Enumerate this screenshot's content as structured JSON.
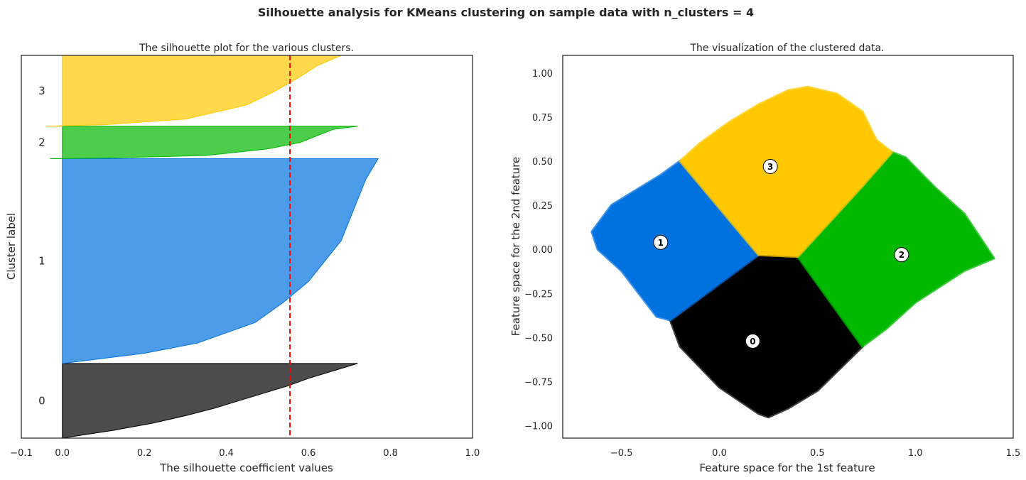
{
  "figure": {
    "title": "Silhouette analysis for KMeans clustering on sample data with n_clusters = 4"
  },
  "chart_data": [
    {
      "type": "area",
      "title": "The silhouette plot for the various clusters.",
      "xlabel": "The silhouette coefficient values",
      "ylabel": "Cluster label",
      "xlim": [
        -0.1,
        1.0
      ],
      "ylim": [
        0,
        100
      ],
      "xticks": [
        "−0.1",
        "0.0",
        "0.2",
        "0.4",
        "0.6",
        "0.8",
        "1.0"
      ],
      "xtick_values": [
        -0.1,
        0.0,
        0.2,
        0.4,
        0.6,
        0.8,
        1.0
      ],
      "yticks": [],
      "grid": false,
      "average_silhouette": 0.555,
      "clusters": [
        {
          "label": "0",
          "color": "#000000",
          "y_start": 0,
          "y_end": 19.5,
          "min": 0.0,
          "max": 0.72,
          "profile": [
            [
              0,
              0.0
            ],
            [
              0.1,
              0.12
            ],
            [
              0.2,
              0.22
            ],
            [
              0.3,
              0.3
            ],
            [
              0.4,
              0.37
            ],
            [
              0.5,
              0.43
            ],
            [
              0.6,
              0.49
            ],
            [
              0.7,
              0.55
            ],
            [
              0.8,
              0.6
            ],
            [
              0.9,
              0.66
            ],
            [
              1,
              0.72
            ]
          ]
        },
        {
          "label": "1",
          "color": "#0072e0",
          "y_start": 19.5,
          "y_end": 73,
          "min": 0.0,
          "max": 0.77,
          "profile": [
            [
              0,
              0.0
            ],
            [
              0.05,
              0.2
            ],
            [
              0.1,
              0.33
            ],
            [
              0.2,
              0.47
            ],
            [
              0.3,
              0.54
            ],
            [
              0.4,
              0.6
            ],
            [
              0.5,
              0.64
            ],
            [
              0.6,
              0.68
            ],
            [
              0.7,
              0.7
            ],
            [
              0.8,
              0.72
            ],
            [
              0.9,
              0.74
            ],
            [
              1,
              0.77
            ]
          ]
        },
        {
          "label": "2",
          "color": "#00b800",
          "y_start": 73,
          "y_end": 81.5,
          "min": -0.03,
          "max": 0.72,
          "profile": [
            [
              0,
              -0.03
            ],
            [
              0.02,
              0.1
            ],
            [
              0.1,
              0.35
            ],
            [
              0.3,
              0.5
            ],
            [
              0.5,
              0.58
            ],
            [
              0.7,
              0.62
            ],
            [
              0.9,
              0.66
            ],
            [
              1,
              0.72
            ]
          ]
        },
        {
          "label": "3",
          "color": "#ffc800",
          "y_start": 81.5,
          "y_end": 100,
          "min": -0.04,
          "max": 0.68,
          "profile": [
            [
              0,
              -0.04
            ],
            [
              0.02,
              0.1
            ],
            [
              0.1,
              0.3
            ],
            [
              0.3,
              0.45
            ],
            [
              0.5,
              0.52
            ],
            [
              0.7,
              0.58
            ],
            [
              0.85,
              0.62
            ],
            [
              1,
              0.68
            ]
          ]
        }
      ]
    },
    {
      "type": "scatter",
      "title": "The visualization of the clustered data.",
      "xlabel": "Feature space for the 1st feature",
      "ylabel": "Feature space for the 2nd feature",
      "xlim": [
        -0.8,
        1.5
      ],
      "ylim": [
        -1.07,
        1.1
      ],
      "xticks": [
        "−0.5",
        "0.0",
        "0.5",
        "1.0",
        "1.5"
      ],
      "xtick_values": [
        -0.5,
        0.0,
        0.5,
        1.0,
        1.5
      ],
      "yticks": [
        "−1.00",
        "−0.75",
        "−0.50",
        "−0.25",
        "0.00",
        "0.25",
        "0.50",
        "0.75",
        "1.00"
      ],
      "ytick_values": [
        -1.0,
        -0.75,
        -0.5,
        -0.25,
        0.0,
        0.25,
        0.5,
        0.75,
        1.0
      ],
      "grid": false,
      "regions": [
        {
          "label": "0",
          "color": "#000000",
          "polygon": [
            [
              -0.25,
              -0.4
            ],
            [
              0.2,
              -0.03
            ],
            [
              0.4,
              -0.04
            ],
            [
              0.73,
              -0.55
            ],
            [
              0.5,
              -0.8
            ],
            [
              0.35,
              -0.9
            ],
            [
              0.25,
              -0.95
            ],
            [
              0.2,
              -0.93
            ],
            [
              0.0,
              -0.78
            ],
            [
              -0.2,
              -0.55
            ]
          ]
        },
        {
          "label": "1",
          "color": "#0072e0",
          "polygon": [
            [
              -0.65,
              0.1
            ],
            [
              -0.55,
              0.25
            ],
            [
              -0.3,
              0.42
            ],
            [
              -0.2,
              0.5
            ],
            [
              -0.12,
              0.48
            ],
            [
              0.2,
              -0.03
            ],
            [
              -0.25,
              -0.4
            ],
            [
              -0.32,
              -0.38
            ],
            [
              -0.5,
              -0.12
            ],
            [
              -0.62,
              0.0
            ]
          ]
        },
        {
          "label": "2",
          "color": "#00b800",
          "polygon": [
            [
              0.4,
              -0.04
            ],
            [
              0.73,
              0.36
            ],
            [
              0.88,
              0.55
            ],
            [
              0.95,
              0.52
            ],
            [
              1.1,
              0.35
            ],
            [
              1.25,
              0.2
            ],
            [
              1.4,
              -0.05
            ],
            [
              1.25,
              -0.12
            ],
            [
              1.0,
              -0.3
            ],
            [
              0.85,
              -0.45
            ],
            [
              0.73,
              -0.55
            ]
          ]
        },
        {
          "label": "3",
          "color": "#ffc800",
          "polygon": [
            [
              -0.2,
              0.5
            ],
            [
              -0.1,
              0.6
            ],
            [
              0.05,
              0.72
            ],
            [
              0.2,
              0.82
            ],
            [
              0.35,
              0.9
            ],
            [
              0.45,
              0.92
            ],
            [
              0.6,
              0.88
            ],
            [
              0.73,
              0.78
            ],
            [
              0.8,
              0.62
            ],
            [
              0.88,
              0.55
            ],
            [
              0.73,
              0.36
            ],
            [
              0.4,
              -0.04
            ],
            [
              0.2,
              -0.03
            ]
          ]
        }
      ],
      "centers": [
        {
          "label": "0",
          "x": 0.17,
          "y": -0.52
        },
        {
          "label": "1",
          "x": -0.3,
          "y": 0.04
        },
        {
          "label": "2",
          "x": 0.93,
          "y": -0.03
        },
        {
          "label": "3",
          "x": 0.26,
          "y": 0.47
        }
      ]
    }
  ]
}
